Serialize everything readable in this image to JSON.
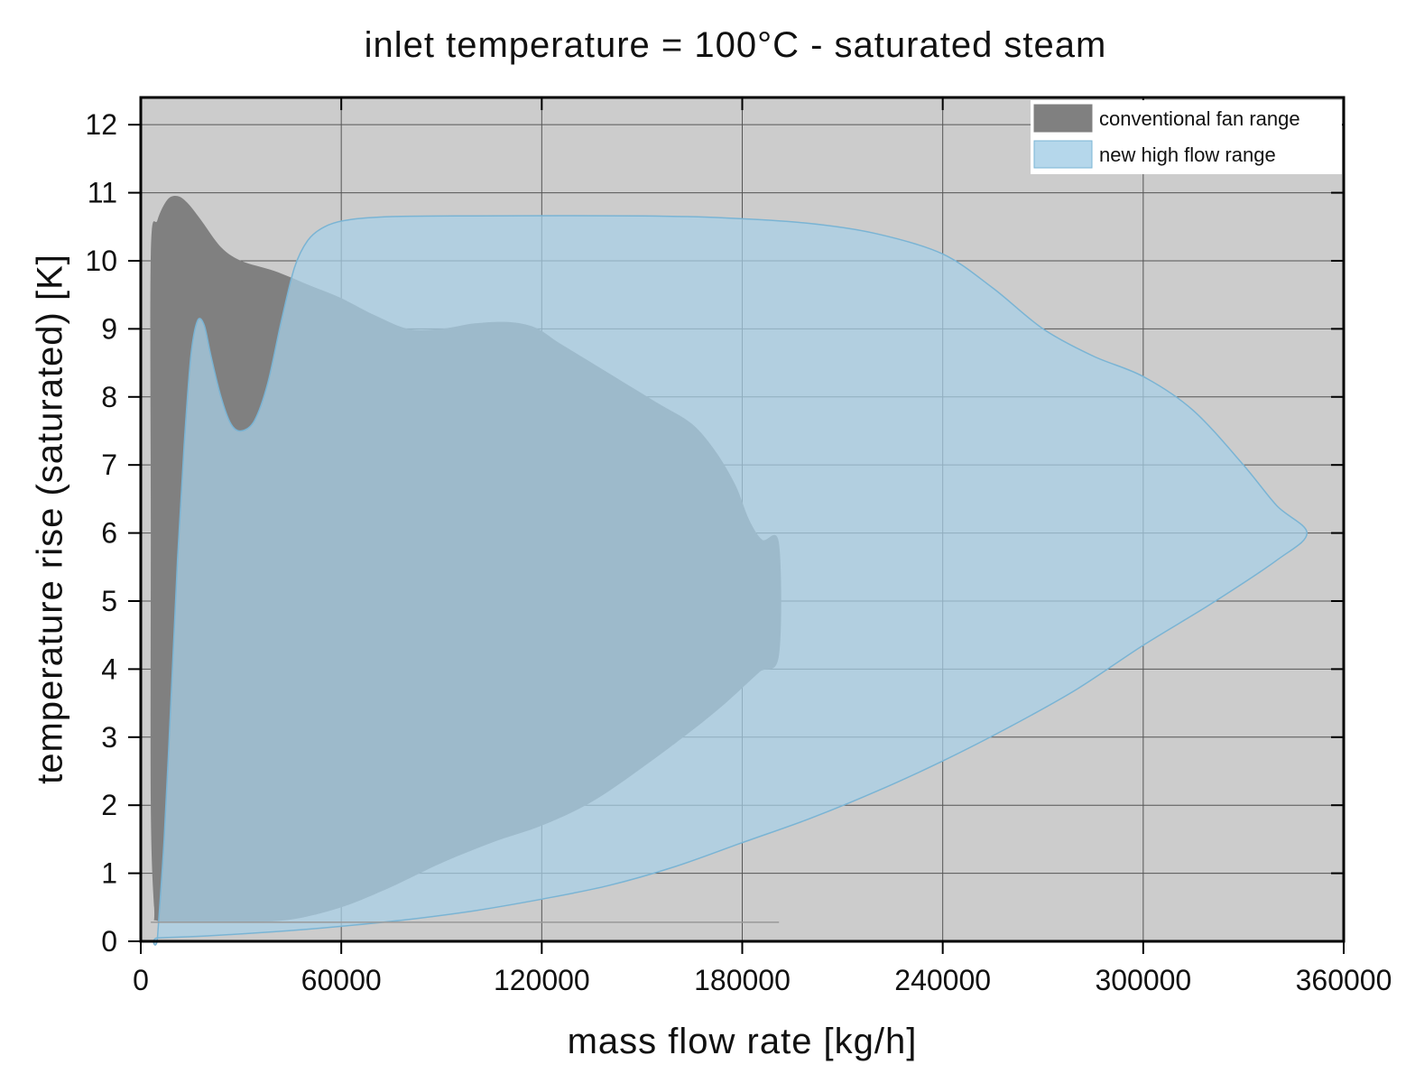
{
  "chart_data": {
    "type": "area",
    "title": "inlet temperature = 100°C - saturated steam",
    "xlabel": "mass flow rate [kg/h]",
    "ylabel": "temperature rise (saturated) [K]",
    "xlim": [
      0,
      360000
    ],
    "ylim": [
      0,
      12.4
    ],
    "x_ticks": [
      0,
      60000,
      120000,
      180000,
      240000,
      300000,
      360000
    ],
    "x_tick_labels": [
      "0",
      "60000",
      "120000",
      "180000",
      "240000",
      "300000",
      "360000"
    ],
    "y_ticks": [
      0,
      1,
      2,
      3,
      4,
      5,
      6,
      7,
      8,
      9,
      10,
      11,
      12
    ],
    "y_tick_labels": [
      "0",
      "1",
      "2",
      "3",
      "4",
      "5",
      "6",
      "7",
      "8",
      "9",
      "10",
      "11",
      "12"
    ],
    "grid": true,
    "legend_position": "top-right",
    "background_color": "#cccccc",
    "series": [
      {
        "name": "conventional fan range",
        "color": "#808080",
        "opacity": 1.0,
        "outline": [
          [
            3000,
            10.1
          ],
          [
            5000,
            10.6
          ],
          [
            8000,
            10.9
          ],
          [
            11000,
            10.95
          ],
          [
            14000,
            10.85
          ],
          [
            18000,
            10.6
          ],
          [
            24000,
            10.2
          ],
          [
            30000,
            10.0
          ],
          [
            40000,
            9.85
          ],
          [
            50000,
            9.65
          ],
          [
            60000,
            9.45
          ],
          [
            70000,
            9.2
          ],
          [
            80000,
            9.0
          ],
          [
            90000,
            9.0
          ],
          [
            100000,
            9.08
          ],
          [
            110000,
            9.1
          ],
          [
            118000,
            9.02
          ],
          [
            125000,
            8.8
          ],
          [
            135000,
            8.5
          ],
          [
            145000,
            8.2
          ],
          [
            155000,
            7.9
          ],
          [
            165000,
            7.6
          ],
          [
            172000,
            7.2
          ],
          [
            178000,
            6.7
          ],
          [
            182000,
            6.2
          ],
          [
            186000,
            5.9
          ],
          [
            191000,
            5.85
          ],
          [
            191000,
            4.2
          ],
          [
            185000,
            3.95
          ],
          [
            175000,
            3.5
          ],
          [
            165000,
            3.1
          ],
          [
            150000,
            2.55
          ],
          [
            135000,
            2.05
          ],
          [
            120000,
            1.7
          ],
          [
            105000,
            1.45
          ],
          [
            90000,
            1.15
          ],
          [
            75000,
            0.8
          ],
          [
            60000,
            0.5
          ],
          [
            45000,
            0.32
          ],
          [
            30000,
            0.28
          ],
          [
            15000,
            0.28
          ],
          [
            5000,
            0.3
          ],
          [
            4000,
            0.5
          ],
          [
            3000,
            2.0
          ],
          [
            3000,
            6.0
          ]
        ]
      },
      {
        "name": "new high flow range",
        "color": "#a8d0e8",
        "opacity": 0.72,
        "stroke": "#7ab4d4",
        "outline": [
          [
            5000,
            0.05
          ],
          [
            7000,
            1.5
          ],
          [
            9000,
            3.5
          ],
          [
            11000,
            5.6
          ],
          [
            13000,
            7.3
          ],
          [
            15000,
            8.6
          ],
          [
            17000,
            9.12
          ],
          [
            19000,
            9.05
          ],
          [
            21000,
            8.6
          ],
          [
            24000,
            8.0
          ],
          [
            27000,
            7.6
          ],
          [
            30000,
            7.5
          ],
          [
            34000,
            7.65
          ],
          [
            38000,
            8.2
          ],
          [
            42000,
            9.1
          ],
          [
            46000,
            9.9
          ],
          [
            50000,
            10.3
          ],
          [
            55000,
            10.5
          ],
          [
            62000,
            10.6
          ],
          [
            75000,
            10.65
          ],
          [
            100000,
            10.66
          ],
          [
            150000,
            10.66
          ],
          [
            175000,
            10.63
          ],
          [
            200000,
            10.55
          ],
          [
            220000,
            10.4
          ],
          [
            240000,
            10.1
          ],
          [
            255000,
            9.6
          ],
          [
            270000,
            9.0
          ],
          [
            285000,
            8.6
          ],
          [
            300000,
            8.3
          ],
          [
            315000,
            7.8
          ],
          [
            330000,
            7.0
          ],
          [
            340000,
            6.4
          ],
          [
            349000,
            6.0
          ],
          [
            340000,
            5.6
          ],
          [
            320000,
            4.95
          ],
          [
            300000,
            4.35
          ],
          [
            280000,
            3.7
          ],
          [
            260000,
            3.15
          ],
          [
            240000,
            2.65
          ],
          [
            220000,
            2.2
          ],
          [
            200000,
            1.8
          ],
          [
            180000,
            1.45
          ],
          [
            160000,
            1.1
          ],
          [
            140000,
            0.82
          ],
          [
            120000,
            0.62
          ],
          [
            100000,
            0.45
          ],
          [
            80000,
            0.32
          ],
          [
            60000,
            0.22
          ],
          [
            40000,
            0.14
          ],
          [
            20000,
            0.08
          ],
          [
            5000,
            0.05
          ]
        ]
      }
    ],
    "baseline": {
      "color": "#999999",
      "points": [
        [
          3000,
          0.28
        ],
        [
          191000,
          0.28
        ]
      ]
    }
  }
}
